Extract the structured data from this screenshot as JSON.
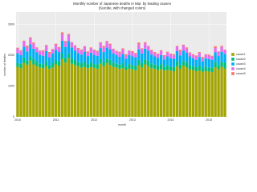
{
  "chart_data": {
    "type": "stacked_bar",
    "title": "Monthly number of Japanese deaths in Mar. by leading causes",
    "subtitle": "(Suicide, with changed colors)",
    "x_label": "month",
    "y_label": "number of deaths",
    "categories": [
      "2010",
      null,
      null,
      null,
      null,
      null,
      null,
      null,
      null,
      null,
      null,
      null,
      "2011",
      null,
      null,
      null,
      null,
      null,
      null,
      null,
      null,
      null,
      null,
      null,
      "2012",
      null,
      null,
      null,
      null,
      null,
      null,
      null,
      null,
      null,
      null,
      null,
      "2013",
      null,
      null,
      null,
      null,
      null,
      null,
      null,
      null,
      null,
      null,
      null,
      "2014",
      null,
      null,
      null,
      null,
      null,
      null,
      null,
      null,
      null,
      null,
      null,
      "2015",
      null,
      null,
      null,
      null,
      null
    ],
    "ylim": [
      0,
      3400
    ],
    "yticks": [
      0,
      1000,
      2000,
      3000
    ],
    "grid": true,
    "series": [
      {
        "name": "cause1",
        "color": "#a3a500",
        "values": [
          1620,
          1580,
          1750,
          1690,
          1820,
          1700,
          1650,
          1600,
          1580,
          1640,
          1560,
          1600,
          1700,
          1650,
          1880,
          1760,
          1900,
          1720,
          1680,
          1640,
          1600,
          1620,
          1580,
          1610,
          1590,
          1560,
          1720,
          1650,
          1740,
          1680,
          1620,
          1600,
          1560,
          1580,
          1520,
          1560,
          1540,
          1510,
          1680,
          1600,
          1700,
          1640,
          1580,
          1560,
          1520,
          1540,
          1500,
          1520,
          1500,
          1480,
          1640,
          1560,
          1660,
          1600,
          1540,
          1520,
          1480,
          1500,
          1460,
          1480,
          1470,
          1450,
          1600,
          1540,
          1620,
          1560
        ]
      },
      {
        "name": "cause2",
        "color": "#00bf7d",
        "values": [
          120,
          140,
          160,
          130,
          150,
          170,
          140,
          120,
          130,
          160,
          110,
          150,
          130,
          150,
          170,
          140,
          160,
          180,
          150,
          130,
          140,
          170,
          120,
          160,
          120,
          140,
          160,
          130,
          150,
          170,
          140,
          120,
          130,
          160,
          110,
          150,
          130,
          150,
          170,
          140,
          160,
          180,
          150,
          130,
          140,
          170,
          120,
          160,
          120,
          140,
          160,
          130,
          150,
          170,
          140,
          120,
          130,
          160,
          110,
          150,
          130,
          150,
          170,
          140,
          160,
          180
        ]
      },
      {
        "name": "cause3",
        "color": "#00b0f6",
        "values": [
          320,
          280,
          360,
          300,
          380,
          340,
          310,
          290,
          270,
          330,
          260,
          300,
          340,
          300,
          420,
          360,
          400,
          350,
          320,
          300,
          280,
          320,
          270,
          310,
          300,
          280,
          350,
          320,
          360,
          330,
          300,
          280,
          260,
          300,
          250,
          290,
          290,
          270,
          340,
          310,
          350,
          320,
          290,
          270,
          250,
          290,
          240,
          280,
          280,
          260,
          330,
          300,
          340,
          310,
          280,
          260,
          240,
          280,
          230,
          270,
          270,
          250,
          320,
          290,
          330,
          300
        ]
      },
      {
        "name": "cause4",
        "color": "#e76bf3",
        "values": [
          150,
          120,
          180,
          140,
          200,
          160,
          130,
          110,
          140,
          170,
          120,
          130,
          160,
          130,
          210,
          170,
          190,
          150,
          140,
          120,
          130,
          160,
          110,
          140,
          140,
          120,
          170,
          150,
          180,
          150,
          130,
          110,
          120,
          150,
          100,
          130,
          130,
          110,
          160,
          140,
          170,
          140,
          120,
          100,
          110,
          140,
          100,
          120,
          120,
          110,
          150,
          130,
          160,
          130,
          110,
          100,
          100,
          130,
          90,
          110,
          110,
          100,
          140,
          120,
          150,
          120
        ]
      },
      {
        "name": "cause5",
        "color": "#f8766d",
        "values": [
          30,
          40,
          20,
          50,
          30,
          40,
          20,
          30,
          40,
          30,
          50,
          20,
          40,
          30,
          60,
          30,
          40,
          20,
          30,
          40,
          30,
          20,
          40,
          30,
          30,
          40,
          20,
          50,
          30,
          40,
          20,
          30,
          40,
          30,
          50,
          20,
          40,
          30,
          60,
          30,
          40,
          20,
          30,
          40,
          30,
          20,
          40,
          30,
          30,
          40,
          20,
          50,
          30,
          40,
          20,
          30,
          40,
          30,
          50,
          20,
          40,
          30,
          60,
          30,
          40,
          20
        ]
      }
    ]
  }
}
